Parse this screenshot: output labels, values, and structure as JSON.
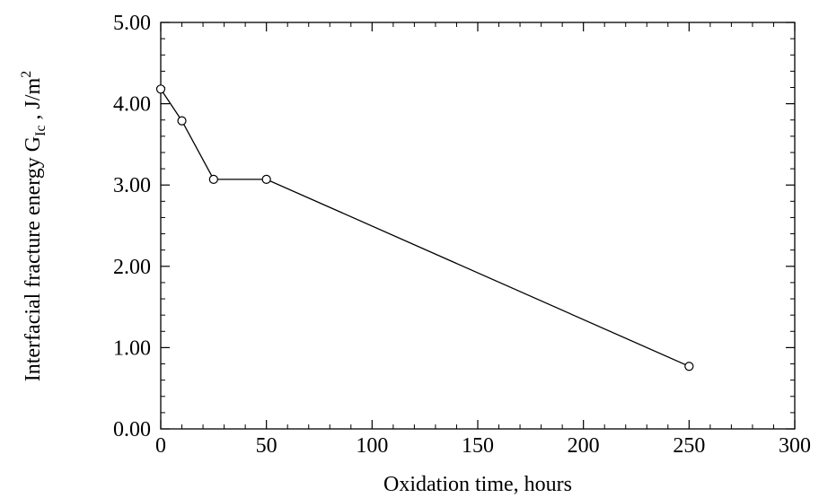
{
  "chart_data": {
    "type": "line",
    "title": "",
    "xlabel": "Oxidation time, hours",
    "ylabel": {
      "main": "Interfacial fracture energy G",
      "subscript": "Ic",
      "unit_prefix": " , J/m",
      "superscript": "2"
    },
    "xlim": [
      0,
      300
    ],
    "ylim": [
      0,
      5
    ],
    "x_ticks": [
      0,
      50,
      100,
      150,
      200,
      250,
      300
    ],
    "x_tick_labels": [
      "0",
      "50",
      "100",
      "150",
      "200",
      "250",
      "300"
    ],
    "y_ticks": [
      0,
      1,
      2,
      3,
      4,
      5
    ],
    "y_tick_labels": [
      "0.00",
      "1.00",
      "2.00",
      "3.00",
      "4.00",
      "5.00"
    ],
    "grid": false,
    "series": [
      {
        "x": [
          0,
          10,
          25,
          50,
          250
        ],
        "y": [
          4.18,
          3.79,
          3.07,
          3.07,
          0.77
        ],
        "marker": "open-circle",
        "color": "#000000"
      }
    ]
  }
}
